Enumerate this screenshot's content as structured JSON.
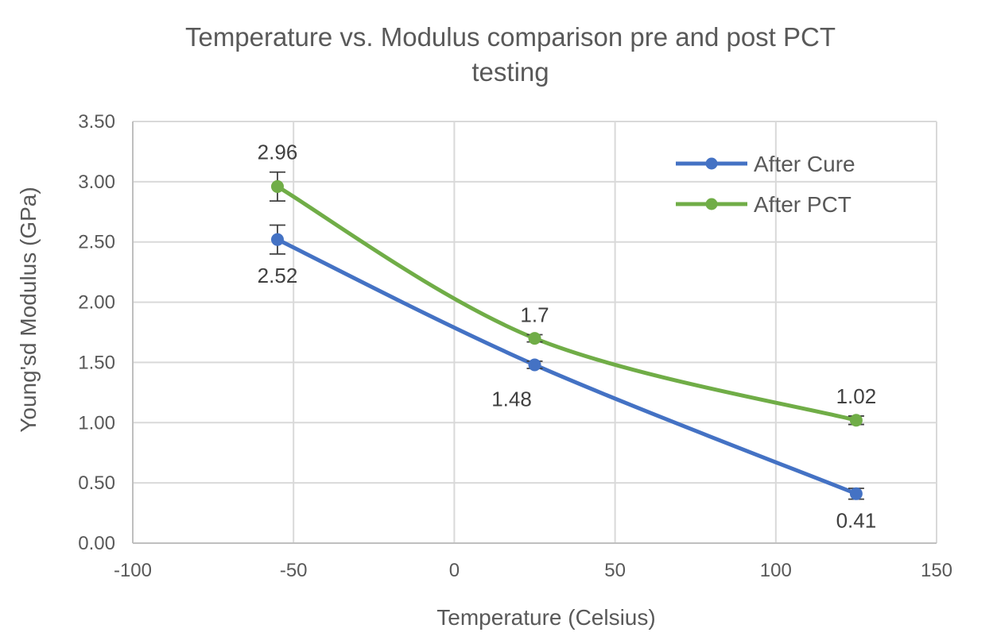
{
  "chart_data": {
    "type": "scatter",
    "title_line1": "Temperature vs. Modulus comparison pre and post PCT",
    "title_line2": "testing",
    "xlabel": "Temperature  (Celsius)",
    "ylabel": "Young'sd Modulus (GPa)",
    "xlim": [
      -100,
      150
    ],
    "ylim": [
      0,
      3.5
    ],
    "x_ticks": [
      -100,
      -50,
      0,
      50,
      100,
      150
    ],
    "x_tick_labels": [
      "-100",
      "-50",
      "0",
      "50",
      "100",
      "150"
    ],
    "y_ticks": [
      0,
      0.5,
      1,
      1.5,
      2,
      2.5,
      3,
      3.5
    ],
    "y_tick_labels": [
      "0.00",
      "0.50",
      "1.00",
      "1.50",
      "2.00",
      "2.50",
      "3.00",
      "3.50"
    ],
    "grid": true,
    "smoothed_lines": true,
    "legend_position": "top-right",
    "series": [
      {
        "name": "After Cure",
        "color": "#4472C4",
        "x": [
          -55,
          25,
          125
        ],
        "y": [
          2.52,
          1.48,
          0.41
        ],
        "error": [
          0.12,
          0.03,
          0.045
        ],
        "data_labels": [
          "2.52",
          "1.48",
          "0.41"
        ],
        "label_position": "below"
      },
      {
        "name": "After PCT",
        "color": "#70AD47",
        "x": [
          -55,
          25,
          125
        ],
        "y": [
          2.96,
          1.7,
          1.02
        ],
        "error": [
          0.12,
          0.03,
          0.035
        ],
        "data_labels": [
          "2.96",
          "1.7",
          "1.02"
        ],
        "label_position": "above"
      }
    ]
  }
}
